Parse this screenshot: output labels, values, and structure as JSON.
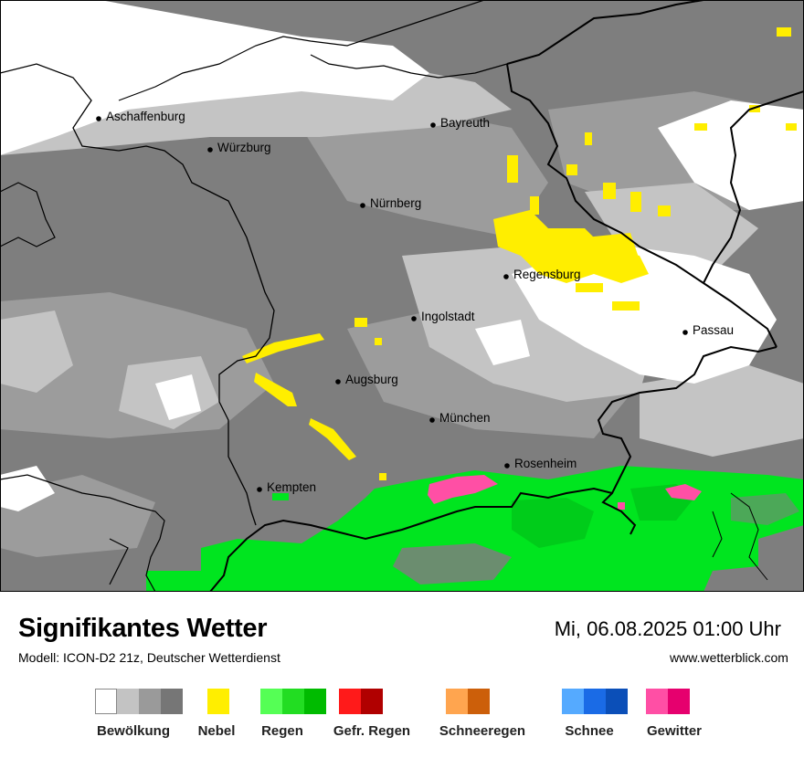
{
  "title": "Signifikantes Wetter",
  "model": "Modell: ICON-D2 21z, Deutscher Wetterdienst",
  "datetime": "Mi, 06.08.2025 01:00 Uhr",
  "website": "www.wetterblick.com",
  "cities": [
    {
      "name": "Aschaffenburg"
    },
    {
      "name": "Würzburg"
    },
    {
      "name": "Bayreuth"
    },
    {
      "name": "Nürnberg"
    },
    {
      "name": "Regensburg"
    },
    {
      "name": "Ingolstadt"
    },
    {
      "name": "Passau"
    },
    {
      "name": "Augsburg"
    },
    {
      "name": "München"
    },
    {
      "name": "Rosenheim"
    },
    {
      "name": "Kempten"
    }
  ],
  "legend": [
    {
      "label": "Bewölkung",
      "colors": [
        "#ffffff",
        "#c3c3c3",
        "#9a9a9a",
        "#767676"
      ]
    },
    {
      "label": "Nebel",
      "colors": [
        "#ffee00"
      ]
    },
    {
      "label": "Regen",
      "colors": [
        "#55ff55",
        "#22dd22",
        "#00bb00"
      ]
    },
    {
      "label": "Gefr. Regen",
      "colors": [
        "#ff1a1a",
        "#b00000"
      ]
    },
    {
      "label": "Schneeregen",
      "colors": [
        "#ffa54f",
        "#cc5f0a"
      ]
    },
    {
      "label": "Schnee",
      "colors": [
        "#55aaff",
        "#1a6be6",
        "#0b4fb8"
      ]
    },
    {
      "label": "Gewitter",
      "colors": [
        "#ff4fa5",
        "#e6006e"
      ]
    }
  ]
}
